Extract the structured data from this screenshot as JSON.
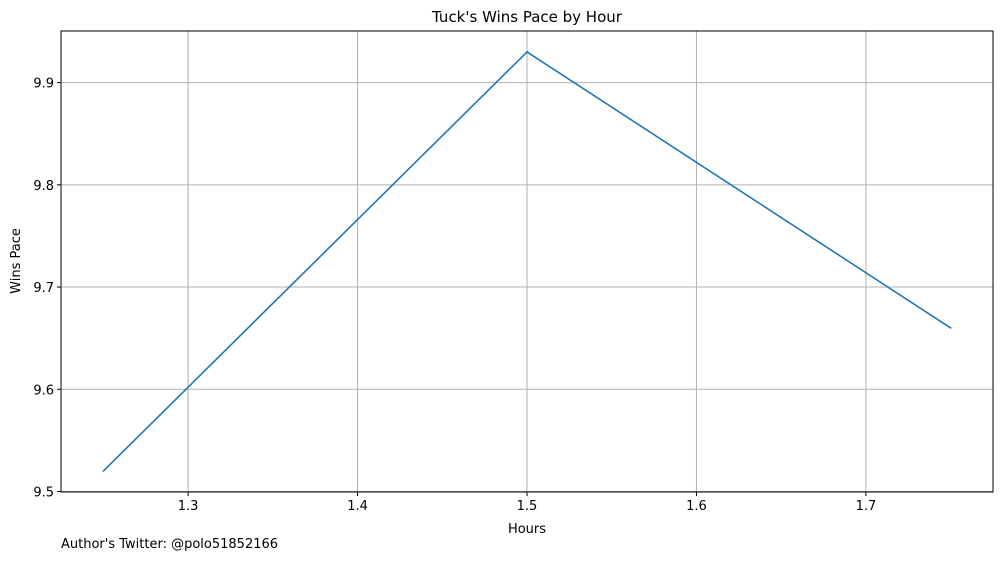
{
  "chart_data": {
    "type": "line",
    "title": "Tuck's Wins Pace by Hour",
    "xlabel": "Hours",
    "ylabel": "Wins Pace",
    "x": [
      1.25,
      1.5,
      1.75
    ],
    "series": [
      {
        "values": [
          9.52,
          9.93,
          9.66
        ],
        "color": "#1f77b4"
      }
    ],
    "xticks": [
      1.3,
      1.4,
      1.5,
      1.6,
      1.7
    ],
    "xtick_labels": [
      "1.3",
      "1.4",
      "1.5",
      "1.6",
      "1.7"
    ],
    "yticks": [
      9.5,
      9.6,
      9.7,
      9.8,
      9.9
    ],
    "ytick_labels": [
      "9.5",
      "9.6",
      "9.7",
      "9.8",
      "9.9"
    ],
    "xlim": [
      1.225,
      1.775
    ],
    "ylim": [
      9.4995,
      9.9505
    ],
    "grid": true
  },
  "footer": {
    "text": "Author's Twitter: @polo51852166"
  }
}
